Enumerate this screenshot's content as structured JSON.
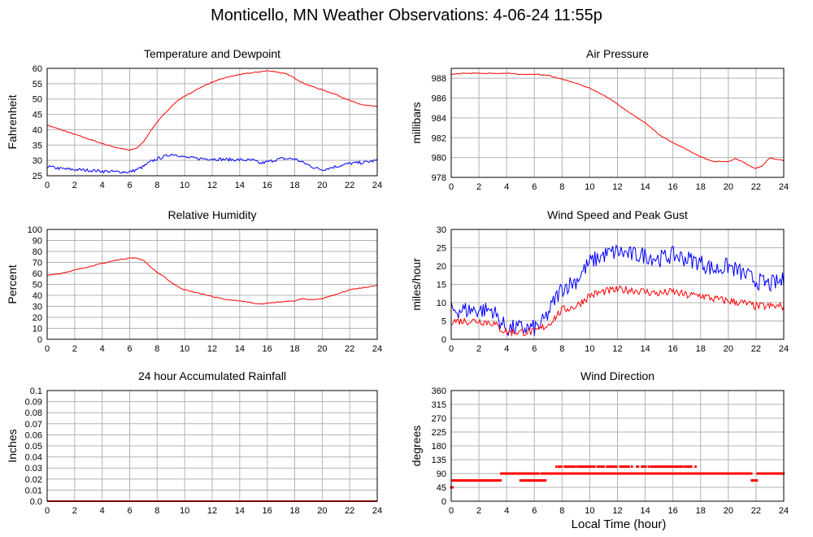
{
  "page": {
    "title": "Monticello, MN Weather Observations: 4-06-24 11:55p"
  },
  "chart_data": [
    {
      "id": "temperature",
      "type": "line",
      "title": "Temperature and Dewpoint",
      "ylabel": "Fahrenheit",
      "xlabel": "",
      "xlim": [
        0,
        24
      ],
      "ylim": [
        25,
        60
      ],
      "yticks": [
        25,
        30,
        35,
        40,
        45,
        50,
        55,
        60
      ],
      "xticks": [
        0,
        2,
        4,
        6,
        8,
        10,
        12,
        14,
        16,
        18,
        20,
        22,
        24
      ],
      "grid": true,
      "series": [
        {
          "color": "#ff0000",
          "noise": 0.15,
          "x": [
            0,
            1,
            2,
            3,
            4,
            5,
            6,
            6.5,
            7,
            7.5,
            8,
            8.5,
            9,
            9.5,
            10,
            10.5,
            11,
            11.5,
            12,
            13,
            14,
            15,
            16,
            16.5,
            17,
            17.5,
            18,
            18.5,
            19,
            20,
            21,
            22,
            22.5,
            23,
            24
          ],
          "y": [
            41.5,
            40,
            38.5,
            37,
            35.5,
            34.2,
            33.3,
            34,
            36,
            39.5,
            42.5,
            45,
            47.5,
            49.5,
            51,
            52,
            53.5,
            54.5,
            55.5,
            57,
            58,
            58.6,
            59.2,
            59,
            58.5,
            58,
            56.8,
            55.5,
            54.5,
            53,
            51.5,
            49.5,
            48.7,
            48,
            47.5
          ]
        },
        {
          "color": "#0000ff",
          "noise": 0.5,
          "x": [
            0,
            1,
            2,
            3,
            4,
            5,
            6,
            6.5,
            7,
            7.5,
            8,
            8.5,
            9,
            9.5,
            10,
            11,
            12,
            13,
            14,
            15,
            15.5,
            16,
            17,
            18,
            18.5,
            19,
            19.5,
            20,
            21,
            22,
            23,
            24
          ],
          "y": [
            28,
            27.3,
            27,
            26.8,
            26.5,
            26.3,
            26.2,
            27,
            28,
            29.5,
            30.5,
            31.2,
            32,
            31.8,
            31,
            30.6,
            30.5,
            30.3,
            30.2,
            30,
            29,
            29.5,
            30.6,
            30.5,
            29.5,
            28.5,
            27.5,
            27,
            28,
            29,
            29.3,
            30
          ]
        }
      ]
    },
    {
      "id": "pressure",
      "type": "line",
      "title": "Air Pressure",
      "ylabel": "millibars",
      "xlabel": "",
      "xlim": [
        0,
        24
      ],
      "ylim": [
        978,
        989
      ],
      "yticks": [
        978,
        980,
        982,
        984,
        986,
        988
      ],
      "xticks": [
        0,
        2,
        4,
        6,
        8,
        10,
        12,
        14,
        16,
        18,
        20,
        22,
        24
      ],
      "grid": true,
      "series": [
        {
          "color": "#ff0000",
          "noise": 0.04,
          "x": [
            0,
            1,
            2,
            3,
            4,
            5,
            6,
            7,
            7.5,
            8,
            9,
            10,
            11,
            12,
            13,
            14,
            15,
            16,
            17,
            18,
            18.5,
            19,
            20,
            20.5,
            21,
            21.5,
            22,
            22.5,
            23,
            23.5,
            24
          ],
          "y": [
            988.4,
            988.5,
            988.5,
            988.5,
            988.5,
            988.4,
            988.4,
            988.3,
            988.1,
            987.9,
            987.5,
            987.0,
            986.3,
            985.4,
            984.4,
            983.5,
            982.3,
            981.5,
            980.8,
            980.1,
            979.8,
            979.6,
            979.6,
            979.9,
            979.6,
            979.2,
            978.9,
            979.2,
            980.0,
            979.8,
            979.7
          ]
        }
      ]
    },
    {
      "id": "humidity",
      "type": "line",
      "title": "Relative Humidity",
      "ylabel": "Percent",
      "xlabel": "",
      "xlim": [
        0,
        24
      ],
      "ylim": [
        0,
        100
      ],
      "yticks": [
        0,
        10,
        20,
        30,
        40,
        50,
        60,
        70,
        80,
        90,
        100
      ],
      "xticks": [
        0,
        2,
        4,
        6,
        8,
        10,
        12,
        14,
        16,
        18,
        20,
        22,
        24
      ],
      "grid": true,
      "series": [
        {
          "color": "#ff0000",
          "noise": 0.4,
          "x": [
            0,
            1,
            2,
            3,
            4,
            5,
            6,
            6.5,
            7,
            7.5,
            8,
            8.5,
            9,
            9.5,
            10,
            11,
            12,
            13,
            14,
            15,
            15.5,
            16,
            17,
            18,
            18.5,
            19,
            19.5,
            20,
            21,
            22,
            23,
            24
          ],
          "y": [
            58,
            60,
            63,
            66,
            69,
            72,
            74,
            74,
            72,
            66,
            61,
            57,
            52,
            48,
            45,
            42,
            39,
            36,
            35,
            33,
            32,
            33,
            34,
            35,
            37,
            36,
            36,
            37,
            41,
            45,
            47,
            49
          ]
        }
      ]
    },
    {
      "id": "wind-speed",
      "type": "line",
      "title": "Wind Speed and Peak Gust",
      "ylabel": "miles/hour",
      "xlabel": "",
      "xlim": [
        0,
        24
      ],
      "ylim": [
        0,
        30
      ],
      "yticks": [
        0,
        5,
        10,
        15,
        20,
        25,
        30
      ],
      "xticks": [
        0,
        2,
        4,
        6,
        8,
        10,
        12,
        14,
        16,
        18,
        20,
        22,
        24
      ],
      "grid": true,
      "series": [
        {
          "color": "#0000ff",
          "noise": 2.4,
          "x": [
            0,
            1,
            2,
            3,
            3.5,
            4,
            5,
            6,
            6.5,
            7,
            7.5,
            8,
            9,
            10,
            11,
            12,
            13,
            14,
            15,
            16,
            17,
            18,
            19,
            20,
            21,
            22,
            23,
            24
          ],
          "y": [
            8,
            8,
            8,
            8,
            5,
            3,
            3,
            3,
            4,
            7,
            11,
            14,
            16,
            21,
            23,
            24,
            23,
            23,
            22,
            23,
            22,
            21,
            19,
            20,
            18,
            16,
            15,
            16
          ]
        },
        {
          "color": "#ff0000",
          "noise": 1.1,
          "x": [
            0,
            1,
            2,
            3,
            3.5,
            4,
            5,
            6,
            6.5,
            7,
            7.5,
            8,
            9,
            10,
            11,
            12,
            13,
            14,
            15,
            16,
            17,
            18,
            19,
            20,
            21,
            22,
            23,
            24
          ],
          "y": [
            5,
            5,
            5,
            4.5,
            3,
            2,
            2,
            2,
            3,
            4,
            6,
            8,
            9,
            12,
            13,
            13.5,
            13.5,
            13,
            12.5,
            13,
            12,
            12,
            11,
            10.5,
            10,
            9,
            9,
            9
          ]
        }
      ]
    },
    {
      "id": "rainfall",
      "type": "line",
      "title": "24 hour Accumulated Rainfall",
      "ylabel": "Inches",
      "xlabel": "",
      "xlim": [
        0,
        24
      ],
      "ylim": [
        0,
        0.1
      ],
      "yticks": [
        0.0,
        0.01,
        0.02,
        0.03,
        0.04,
        0.05,
        0.06,
        0.07,
        0.08,
        0.09,
        0.1
      ],
      "ytick_labels": [
        "0.0",
        "0.01",
        "0.02",
        "0.03",
        "0.04",
        "0.05",
        "0.06",
        "0.07",
        "0.08",
        "0.09",
        "0.1"
      ],
      "xticks": [
        0,
        2,
        4,
        6,
        8,
        10,
        12,
        14,
        16,
        18,
        20,
        22,
        24
      ],
      "grid": true,
      "series": [
        {
          "color": "#ff0000",
          "noise": 0,
          "width": 2,
          "x": [
            0,
            24
          ],
          "y": [
            0,
            0
          ]
        }
      ]
    },
    {
      "id": "wind-direction",
      "type": "scatter",
      "title": "Wind Direction",
      "ylabel": "degrees",
      "xlabel": "Local Time (hour)",
      "xlim": [
        0,
        24
      ],
      "ylim": [
        0,
        360
      ],
      "yticks": [
        0,
        45,
        90,
        135,
        180,
        225,
        270,
        315,
        360
      ],
      "xticks": [
        0,
        2,
        4,
        6,
        8,
        10,
        12,
        14,
        16,
        18,
        20,
        22,
        24
      ],
      "grid": true,
      "series": [
        {
          "color": "#ff0000",
          "segments": [
            {
              "x0": 0.0,
              "x1": 0.1,
              "y": 45
            },
            {
              "x0": 0.1,
              "x1": 3.6,
              "y": 67.5
            },
            {
              "x0": 3.6,
              "x1": 6.3,
              "y": 90
            },
            {
              "x0": 5.0,
              "x1": 6.8,
              "y": 67.5
            },
            {
              "x0": 6.5,
              "x1": 21.7,
              "y": 90
            },
            {
              "x0": 21.7,
              "x1": 22.1,
              "y": 67.5
            },
            {
              "x0": 22.1,
              "x1": 24.0,
              "y": 90
            },
            {
              "x0": 7.6,
              "x1": 17.9,
              "y": 112.5,
              "sparse": true
            }
          ]
        }
      ]
    }
  ]
}
